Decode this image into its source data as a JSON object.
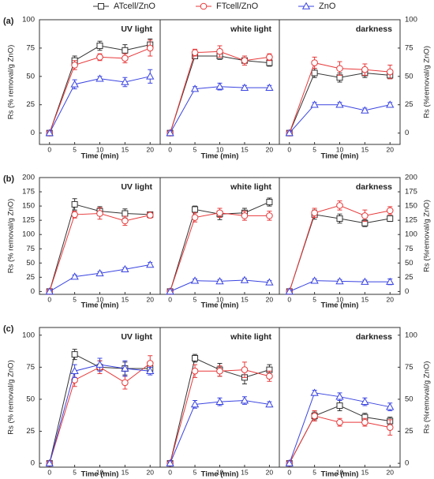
{
  "legend": [
    {
      "name": "ATcell/ZnO",
      "color": "#333333",
      "marker": "square"
    },
    {
      "name": "FTcell/ZnO",
      "color": "#e8393a",
      "marker": "circle"
    },
    {
      "name": "ZnO",
      "color": "#3a44e0",
      "marker": "triangle"
    }
  ],
  "chart_data": [
    {
      "type": "line",
      "label": "(a)",
      "ylabel": "Rs (% removal/g ZnO)",
      "y2label": "Rs (%removal/g ZnO)",
      "xlabel": "Time (min)",
      "x": [
        0,
        5,
        10,
        15,
        20
      ],
      "xlim": [
        -2,
        22
      ],
      "xticks": [
        0,
        5,
        10,
        15,
        20
      ],
      "ylim": [
        -10,
        100
      ],
      "yticks": [
        0,
        25,
        50,
        75,
        100
      ],
      "panels": [
        {
          "title": "UV light",
          "series": [
            {
              "values": [
                0,
                64,
                77,
                73,
                78
              ],
              "errors": [
                1,
                4,
                4,
                5,
                5
              ]
            },
            {
              "values": [
                0,
                60,
                67,
                66,
                75
              ],
              "errors": [
                1,
                4,
                3,
                4,
                7
              ]
            },
            {
              "values": [
                0,
                43,
                48,
                45,
                50
              ],
              "errors": [
                1,
                4,
                2,
                4,
                6
              ]
            }
          ]
        },
        {
          "title": "white light",
          "series": [
            {
              "values": [
                0,
                68,
                68,
                64,
                62
              ],
              "errors": [
                1,
                2,
                3,
                4,
                3
              ]
            },
            {
              "values": [
                0,
                71,
                72,
                64,
                67
              ],
              "errors": [
                1,
                3,
                5,
                4,
                3
              ]
            },
            {
              "values": [
                0,
                39,
                41,
                40,
                40
              ],
              "errors": [
                1,
                2,
                3,
                2,
                2
              ]
            }
          ]
        },
        {
          "title": "darkness",
          "series": [
            {
              "values": [
                0,
                53,
                49,
                53,
                51
              ],
              "errors": [
                1,
                4,
                4,
                4,
                3
              ]
            },
            {
              "values": [
                0,
                62,
                57,
                56,
                54
              ],
              "errors": [
                1,
                5,
                6,
                5,
                6
              ]
            },
            {
              "values": [
                0,
                25,
                25,
                20,
                25
              ],
              "errors": [
                1,
                2,
                2,
                2,
                2
              ]
            }
          ]
        }
      ]
    },
    {
      "type": "line",
      "label": "(b)",
      "ylabel": "Rs (% removal/g ZnO)",
      "y2label": "Rs (%removal/g ZnO)",
      "xlabel": "Time (min)",
      "x": [
        0,
        5,
        10,
        15,
        20
      ],
      "xlim": [
        -2,
        22
      ],
      "xticks": [
        0,
        5,
        10,
        15,
        20
      ],
      "ylim": [
        -5,
        200
      ],
      "yticks": [
        0,
        25,
        50,
        75,
        100,
        125,
        150,
        175,
        200
      ],
      "panels": [
        {
          "title": "UV light",
          "series": [
            {
              "values": [
                0,
                153,
                141,
                137,
                135
              ],
              "errors": [
                2,
                10,
                8,
                8,
                4
              ]
            },
            {
              "values": [
                0,
                135,
                137,
                124,
                134
              ],
              "errors": [
                2,
                6,
                10,
                8,
                5
              ]
            },
            {
              "values": [
                0,
                26,
                32,
                39,
                47
              ],
              "errors": [
                2,
                3,
                3,
                3,
                4
              ]
            }
          ]
        },
        {
          "title": "white light",
          "series": [
            {
              "values": [
                0,
                144,
                136,
                138,
                157
              ],
              "errors": [
                2,
                6,
                10,
                8,
                7
              ]
            },
            {
              "values": [
                0,
                130,
                138,
                133,
                133
              ],
              "errors": [
                2,
                8,
                8,
                8,
                8
              ]
            },
            {
              "values": [
                0,
                19,
                18,
                20,
                16
              ],
              "errors": [
                2,
                3,
                3,
                3,
                3
              ]
            }
          ]
        },
        {
          "title": "darkness",
          "series": [
            {
              "values": [
                0,
                135,
                128,
                120,
                128
              ],
              "errors": [
                2,
                8,
                8,
                6,
                5
              ]
            },
            {
              "values": [
                0,
                138,
                151,
                133,
                142
              ],
              "errors": [
                2,
                8,
                8,
                10,
                7
              ]
            },
            {
              "values": [
                0,
                19,
                18,
                17,
                17
              ],
              "errors": [
                2,
                3,
                3,
                3,
                5
              ]
            }
          ]
        }
      ]
    },
    {
      "type": "line",
      "label": "(c)",
      "ylabel": "Rs (% removal/g ZnO)",
      "y2label": "Rs (%removal/g ZnO)",
      "xlabel": "Time (min)",
      "x": [
        0,
        5,
        10,
        15,
        20
      ],
      "xlim": [
        -2,
        22
      ],
      "xticks": [
        0,
        5,
        10,
        15,
        20
      ],
      "ylim": [
        -3,
        106
      ],
      "yticks": [
        0,
        25,
        50,
        75,
        100
      ],
      "panels": [
        {
          "title": "UV light",
          "series": [
            {
              "values": [
                0,
                85,
                75,
                74,
                74
              ],
              "errors": [
                1,
                4,
                5,
                5,
                4
              ]
            },
            {
              "values": [
                0,
                65,
                75,
                63,
                78
              ],
              "errors": [
                1,
                5,
                5,
                5,
                6
              ]
            },
            {
              "values": [
                0,
                72,
                77,
                74,
                72
              ],
              "errors": [
                1,
                5,
                5,
                6,
                3
              ]
            }
          ]
        },
        {
          "title": "white light",
          "series": [
            {
              "values": [
                0,
                82,
                73,
                67,
                73
              ],
              "errors": [
                1,
                3,
                5,
                5,
                4
              ]
            },
            {
              "values": [
                0,
                72,
                72,
                73,
                68
              ],
              "errors": [
                1,
                5,
                4,
                6,
                4
              ]
            },
            {
              "values": [
                0,
                46,
                48,
                49,
                46
              ],
              "errors": [
                1,
                3,
                3,
                3,
                2
              ]
            }
          ]
        },
        {
          "title": "darkness",
          "series": [
            {
              "values": [
                0,
                37,
                45,
                36,
                33
              ],
              "errors": [
                1,
                3,
                4,
                3,
                3
              ]
            },
            {
              "values": [
                0,
                37,
                32,
                32,
                28
              ],
              "errors": [
                1,
                4,
                3,
                3,
                6
              ]
            },
            {
              "values": [
                0,
                55,
                52,
                48,
                44
              ],
              "errors": [
                1,
                2,
                3,
                3,
                3
              ]
            }
          ]
        }
      ]
    }
  ]
}
